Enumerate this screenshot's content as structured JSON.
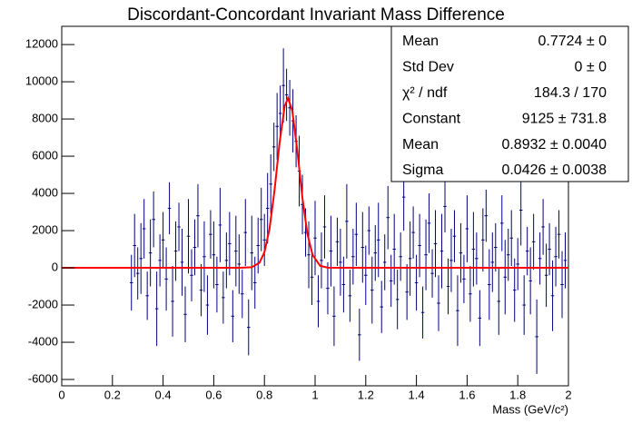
{
  "chart_data": {
    "type": "errorbar",
    "title": "Discordant-Concordant Invariant Mass Difference",
    "x_label": "Mass (GeV/c²)",
    "color": "#000080",
    "bin_width": 0.0125,
    "x": [
      0.275,
      0.2875,
      0.3,
      0.3125,
      0.325,
      0.3375,
      0.35,
      0.3625,
      0.375,
      0.3875,
      0.4,
      0.4125,
      0.425,
      0.4375,
      0.45,
      0.4625,
      0.475,
      0.4875,
      0.5,
      0.5125,
      0.525,
      0.5375,
      0.55,
      0.5625,
      0.575,
      0.5875,
      0.6,
      0.6125,
      0.625,
      0.6375,
      0.65,
      0.6625,
      0.675,
      0.6875,
      0.7,
      0.7125,
      0.725,
      0.7375,
      0.75,
      0.7625,
      0.775,
      0.7875,
      0.8,
      0.8125,
      0.825,
      0.8375,
      0.85,
      0.8625,
      0.875,
      0.8875,
      0.9,
      0.9125,
      0.925,
      0.9375,
      0.95,
      0.9625,
      0.975,
      0.9875,
      1,
      1.0125,
      1.025,
      1.0375,
      1.05,
      1.0625,
      1.075,
      1.0875,
      1.1,
      1.1125,
      1.125,
      1.1375,
      1.15,
      1.1625,
      1.175,
      1.1875,
      1.2,
      1.2125,
      1.225,
      1.2375,
      1.25,
      1.2625,
      1.275,
      1.2875,
      1.3,
      1.3125,
      1.325,
      1.3375,
      1.35,
      1.3625,
      1.375,
      1.3875,
      1.4,
      1.4125,
      1.425,
      1.4375,
      1.45,
      1.4625,
      1.475,
      1.4875,
      1.5,
      1.5125,
      1.525,
      1.5375,
      1.55,
      1.5625,
      1.575,
      1.5875,
      1.6,
      1.6125,
      1.625,
      1.6375,
      1.65,
      1.6625,
      1.675,
      1.6875,
      1.7,
      1.7125,
      1.725,
      1.7375,
      1.75,
      1.7625,
      1.775,
      1.7875,
      1.8,
      1.8125,
      1.825,
      1.8375,
      1.85,
      1.8625,
      1.875,
      1.8875,
      1.9,
      1.9125,
      1.925,
      1.9375,
      1.95,
      1.9625,
      1.975,
      1.9875
    ],
    "values": [
      -800,
      1200,
      -300,
      500,
      2100,
      -1500,
      800,
      2600,
      -2200,
      400,
      1500,
      -600,
      3200,
      -1800,
      900,
      2200,
      300,
      -2500,
      1700,
      -400,
      1100,
      2800,
      -1200,
      600,
      -2000,
      1800,
      700,
      -900,
      2300,
      -1600,
      400,
      1300,
      -2600,
      900,
      200,
      -1400,
      1900,
      -3200,
      800,
      -800,
      1200,
      2600,
      1500,
      3200,
      4500,
      6500,
      7600,
      8300,
      9800,
      9300,
      8600,
      7900,
      6800,
      5200,
      3400,
      1900,
      700,
      -500,
      1600,
      -1800,
      400,
      2200,
      -1100,
      900,
      -2600,
      1400,
      300,
      -900,
      2500,
      -1500,
      600,
      1800,
      -3600,
      1100,
      -400,
      2000,
      -1200,
      800,
      1500,
      -2100,
      300,
      2700,
      -700,
      1000,
      -1700,
      600,
      3800,
      -1300,
      500,
      1900,
      -800,
      1200,
      -2400,
      700,
      2400,
      -300,
      1300,
      -1900,
      900,
      3300,
      -1000,
      400,
      1700,
      -2300,
      800,
      -600,
      2100,
      -1400,
      1000,
      500,
      -2700,
      1500,
      2800,
      -900,
      300,
      1100,
      -1800,
      2400,
      -500,
      700,
      1600,
      -1200,
      200,
      3100,
      -2000,
      900,
      -700,
      1400,
      -3700,
      500,
      2200,
      -400,
      1000,
      -1500,
      600,
      1800,
      -900,
      400
    ],
    "errors": [
      1500,
      1700,
      1400,
      1900,
      1600,
      1300,
      1800,
      1500,
      2000,
      1400,
      1500,
      1700,
      1400,
      1900,
      1600,
      1300,
      1800,
      1500,
      2000,
      1400,
      1500,
      1700,
      1400,
      1900,
      1600,
      1300,
      1800,
      1500,
      2000,
      1400,
      1500,
      1700,
      1400,
      1900,
      1600,
      1300,
      1800,
      1500,
      2000,
      1400,
      1500,
      1700,
      1400,
      1900,
      1600,
      1300,
      1800,
      1500,
      2000,
      1400,
      1500,
      1700,
      1400,
      1900,
      1600,
      1300,
      1800,
      1500,
      2000,
      1400,
      1500,
      1700,
      1400,
      1900,
      1600,
      1300,
      1800,
      1500,
      2000,
      1400,
      1500,
      1700,
      1400,
      1900,
      1600,
      1300,
      1800,
      1500,
      2000,
      1400,
      1500,
      1700,
      1400,
      1900,
      1600,
      1300,
      1800,
      1500,
      2000,
      1400,
      1500,
      1700,
      1400,
      1900,
      1600,
      1300,
      1800,
      1500,
      2000,
      1400,
      1500,
      1700,
      1400,
      1900,
      1600,
      1300,
      1800,
      1500,
      2000,
      1400,
      1500,
      1700,
      1400,
      1900,
      1600,
      1300,
      1800,
      1500,
      2000,
      1400,
      1500,
      1700,
      1400,
      1900,
      1600,
      1300,
      1800,
      1500,
      2000,
      1400,
      1500,
      1700,
      1400,
      1900,
      1600,
      1300,
      1800,
      1500
    ],
    "fit": {
      "color": "#ff0000",
      "x": [
        0,
        0.7,
        0.75,
        0.78,
        0.8,
        0.82,
        0.84,
        0.86,
        0.88,
        0.8932,
        0.91,
        0.93,
        0.95,
        0.97,
        0.99,
        1.02,
        1.05,
        1.1,
        2
      ],
      "values": [
        0,
        0,
        32,
        267,
        834,
        2085,
        4181,
        6734,
        8697,
        9125,
        8442,
        6285,
        3750,
        1797,
        691,
        109,
        10,
        0,
        0
      ]
    },
    "xlim": [
      0,
      2
    ],
    "xticks": [
      0,
      0.2,
      0.4,
      0.6,
      0.8,
      1,
      1.2,
      1.4,
      1.6,
      1.8,
      2
    ],
    "ylim": [
      -6340,
      12980
    ],
    "yticks": [
      -6000,
      -4000,
      -2000,
      0,
      2000,
      4000,
      6000,
      8000,
      10000,
      12000
    ],
    "stats": [
      [
        "Mean",
        "0.7724 ± 0"
      ],
      [
        "Std Dev",
        "0 ± 0"
      ],
      [
        "χ² / ndf",
        "184.3 / 170"
      ],
      [
        "Constant",
        "9125 ± 731.8"
      ],
      [
        "Mean",
        "0.8932 ± 0.0040"
      ],
      [
        "Sigma",
        "0.0426 ± 0.0038"
      ]
    ]
  }
}
